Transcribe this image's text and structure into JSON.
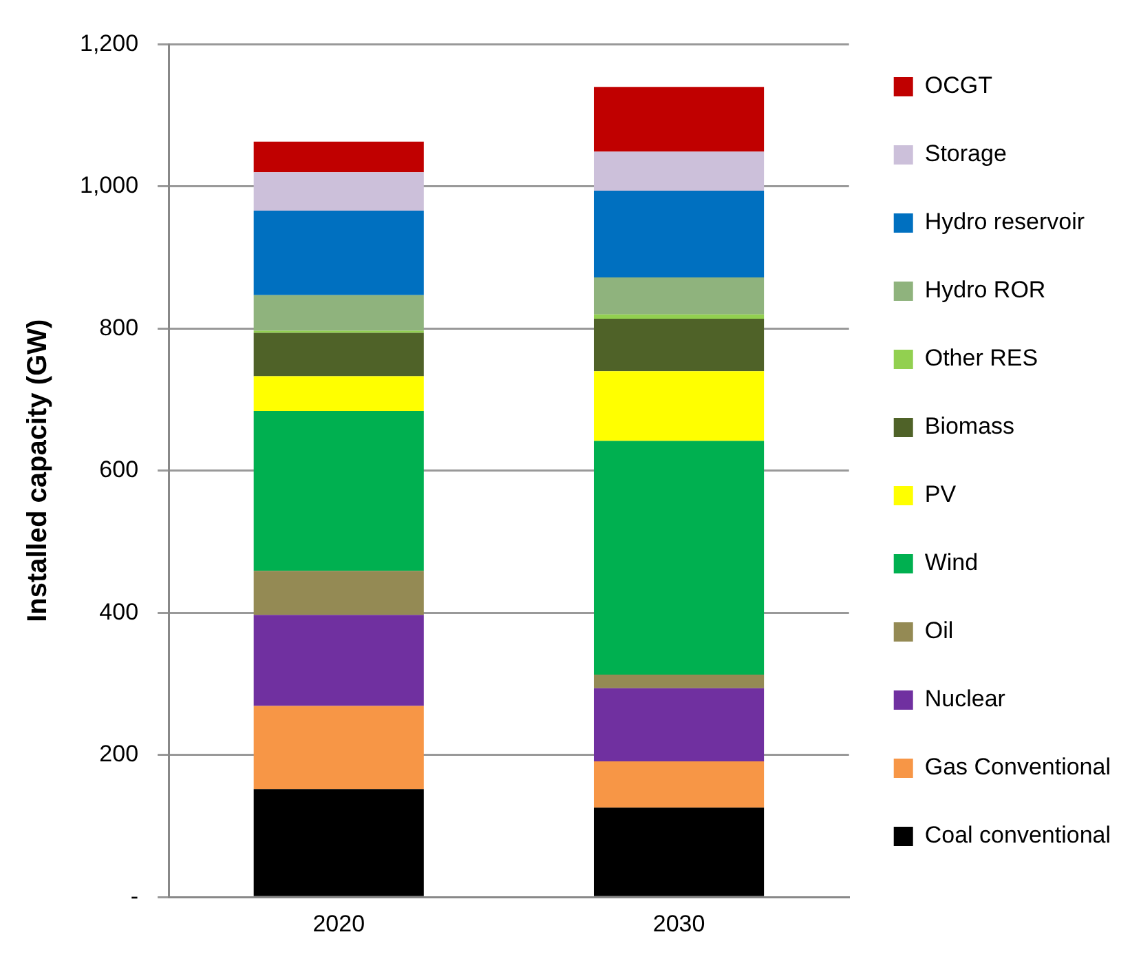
{
  "chart_data": {
    "type": "bar",
    "stacked": true,
    "ylabel": "Installed capacity (GW)",
    "categories": [
      "2020",
      "2030"
    ],
    "series": [
      {
        "name": "Coal conventional",
        "color": "#000000",
        "values": [
          152,
          126
        ]
      },
      {
        "name": "Gas Conventional",
        "color": "#f79646",
        "values": [
          117,
          65
        ]
      },
      {
        "name": "Nuclear",
        "color": "#7030a0",
        "values": [
          128,
          103
        ]
      },
      {
        "name": "Oil",
        "color": "#948a54",
        "values": [
          62,
          19
        ]
      },
      {
        "name": "Wind",
        "color": "#00b050",
        "values": [
          225,
          329
        ]
      },
      {
        "name": "PV",
        "color": "#ffff00",
        "values": [
          49,
          98
        ]
      },
      {
        "name": "Biomass",
        "color": "#4f6228",
        "values": [
          61,
          74
        ]
      },
      {
        "name": "Other RES",
        "color": "#92d050",
        "values": [
          3,
          6
        ]
      },
      {
        "name": "Hydro ROR",
        "color": "#8fb37d",
        "values": [
          50,
          52
        ]
      },
      {
        "name": "Hydro reservoir",
        "color": "#0070c0",
        "values": [
          119,
          122
        ]
      },
      {
        "name": "Storage",
        "color": "#ccc0da",
        "values": [
          54,
          55
        ]
      },
      {
        "name": "OCGT",
        "color": "#c00000",
        "values": [
          43,
          91
        ]
      }
    ],
    "ylim": [
      0,
      1200
    ],
    "yticks": [
      {
        "value": 0,
        "label": "-"
      },
      {
        "value": 200,
        "label": "200"
      },
      {
        "value": 400,
        "label": "400"
      },
      {
        "value": 600,
        "label": "600"
      },
      {
        "value": 800,
        "label": "800"
      },
      {
        "value": 1000,
        "label": "1,000"
      },
      {
        "value": 1200,
        "label": "1,200"
      }
    ],
    "grid": "y",
    "legend": "right"
  }
}
